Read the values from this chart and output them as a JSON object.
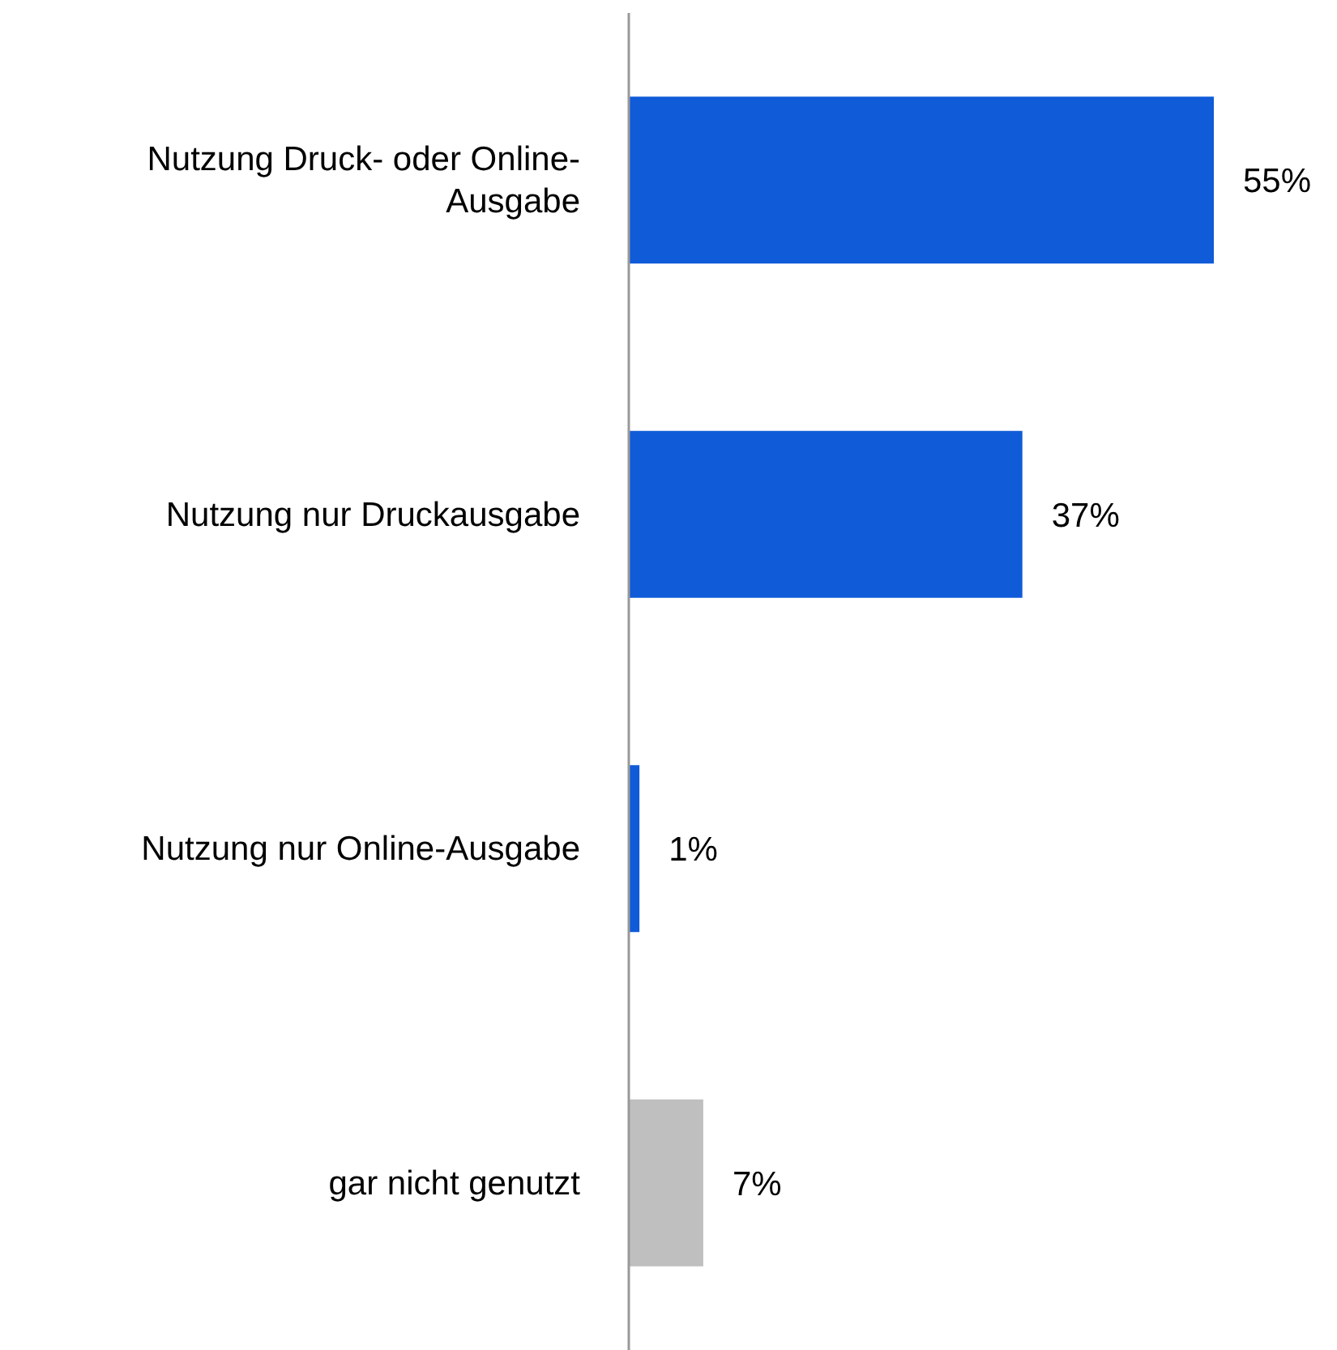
{
  "chart_data": {
    "type": "bar",
    "orientation": "horizontal",
    "relative": false,
    "categories": [
      "Nutzung Druck- oder Online-Ausgabe",
      "Nutzung nur Druckausgabe",
      "Nutzung nur Online-Ausgabe",
      "gar nicht genutzt"
    ],
    "values": [
      55,
      37,
      1,
      7
    ],
    "colors": [
      "#105bd8",
      "#105bd8",
      "#105bd8",
      "#bfbfbf"
    ],
    "value_labels": [
      "55%",
      "37%",
      "1%",
      "7%"
    ]
  }
}
